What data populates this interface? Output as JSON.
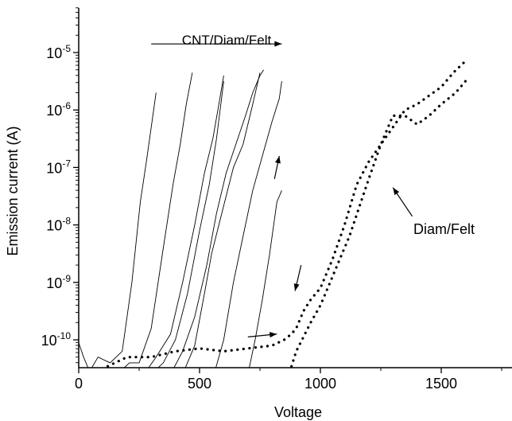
{
  "chart_data": {
    "type": "line",
    "xlabel": "Voltage",
    "ylabel": "Emission current (A)",
    "xlim": [
      0,
      1760
    ],
    "ylim_log10": [
      -10.6,
      -4.35
    ],
    "y_scale": "log",
    "x_ticks": [
      0,
      500,
      1000,
      1500
    ],
    "x_tick_labels": [
      "0",
      "500",
      "1000",
      "1500"
    ],
    "y_ticks": [
      -10,
      -9,
      -8,
      -7,
      -6,
      -5
    ],
    "y_tick_labels": [
      {
        "base": "10",
        "exp": "-10"
      },
      {
        "base": "10",
        "exp": "-9"
      },
      {
        "base": "10",
        "exp": "-8"
      },
      {
        "base": "10",
        "exp": "-7"
      },
      {
        "base": "10",
        "exp": "-6"
      },
      {
        "base": "10",
        "exp": "-5"
      }
    ],
    "annotations": [
      {
        "id": "cnt",
        "text": "CNT/Diam/Felt"
      },
      {
        "id": "diam",
        "text": "Diam/Felt"
      }
    ],
    "series": [
      {
        "group": "CNT/Diam/Felt",
        "style": "solid",
        "x": [
          0,
          20,
          45,
          80,
          130,
          180,
          220,
          255,
          280,
          300,
          320
        ],
        "y": [
          -10.05,
          -10.3,
          -10.55,
          -10.3,
          -10.4,
          -10.2,
          -9.0,
          -7.6,
          -6.9,
          -6.3,
          -5.7
        ]
      },
      {
        "group": "CNT/Diam/Felt",
        "style": "solid",
        "x": [
          160,
          210,
          250,
          300,
          350,
          390,
          420,
          445,
          470
        ],
        "y": [
          -10.6,
          -10.4,
          -10.4,
          -9.8,
          -8.4,
          -7.3,
          -6.6,
          -5.9,
          -5.35
        ]
      },
      {
        "group": "CNT/Diam/Felt",
        "style": "solid",
        "x": [
          270,
          320,
          380,
          430,
          480,
          520,
          555,
          580,
          600
        ],
        "y": [
          -10.6,
          -10.3,
          -9.9,
          -9.0,
          -8.0,
          -7.1,
          -6.5,
          -5.9,
          -5.4
        ]
      },
      {
        "group": "CNT/Diam/Felt",
        "style": "solid",
        "x": [
          300,
          350,
          400,
          450,
          500,
          540,
          570,
          600
        ],
        "y": [
          -10.6,
          -10.4,
          -10.0,
          -9.2,
          -8.1,
          -7.3,
          -6.5,
          -5.5
        ]
      },
      {
        "group": "CNT/Diam/Felt",
        "style": "solid",
        "x": [
          380,
          430,
          480,
          530,
          570,
          610,
          650,
          690,
          720,
          750,
          765
        ],
        "y": [
          -10.6,
          -10.2,
          -9.6,
          -8.7,
          -7.8,
          -7.1,
          -6.6,
          -6.1,
          -5.7,
          -5.4,
          -5.3
        ]
      },
      {
        "group": "CNT/Diam/Felt",
        "style": "solid",
        "x": [
          430,
          480,
          520,
          550,
          580,
          610,
          640,
          680,
          720,
          750
        ],
        "y": [
          -10.6,
          -10.1,
          -9.2,
          -8.5,
          -8.0,
          -7.5,
          -7.0,
          -6.6,
          -5.9,
          -5.35
        ]
      },
      {
        "group": "CNT/Diam/Felt",
        "style": "solid",
        "x": [
          560,
          600,
          640,
          680,
          720,
          760,
          800,
          830,
          840
        ],
        "y": [
          -10.6,
          -10.0,
          -9.0,
          -8.2,
          -7.4,
          -6.8,
          -6.2,
          -5.8,
          -5.5
        ]
      },
      {
        "group": "CNT/Diam/Felt",
        "style": "solid",
        "x": [
          700,
          730,
          760,
          790,
          820,
          840
        ],
        "y": [
          -10.6,
          -10.0,
          -9.3,
          -8.5,
          -7.6,
          -7.4
        ]
      },
      {
        "group": "Diam/Felt",
        "style": "dotted",
        "x": [
          0,
          100,
          200,
          300,
          400,
          500,
          600,
          700,
          800,
          850,
          880,
          900,
          930,
          960,
          1000,
          1050,
          1100,
          1150,
          1200,
          1250,
          1300,
          1350,
          1400,
          1450,
          1500,
          1550,
          1600
        ],
        "y": [
          -10.6,
          -10.5,
          -10.3,
          -10.3,
          -10.2,
          -10.15,
          -10.2,
          -10.15,
          -10.1,
          -10.0,
          -9.9,
          -9.8,
          -9.5,
          -9.3,
          -9.1,
          -8.6,
          -8.0,
          -7.3,
          -6.9,
          -6.6,
          -6.3,
          -6.0,
          -5.9,
          -5.75,
          -5.6,
          -5.35,
          -5.15
        ]
      },
      {
        "group": "Diam/Felt",
        "style": "dotted",
        "x": [
          1600,
          1560,
          1500,
          1450,
          1400,
          1350,
          1300,
          1250,
          1200,
          1160,
          1120,
          1080,
          1040,
          1000,
          960,
          930,
          900,
          870
        ],
        "y": [
          -5.5,
          -5.7,
          -5.9,
          -6.1,
          -6.25,
          -6.1,
          -6.1,
          -6.6,
          -7.2,
          -7.7,
          -8.2,
          -8.6,
          -9.0,
          -9.4,
          -9.7,
          -9.95,
          -10.2,
          -10.6
        ]
      }
    ],
    "arrows": [
      {
        "id": "cnt-direction",
        "x1": 300,
        "y1": -4.85,
        "x2": 840,
        "y2": -4.85
      },
      {
        "id": "cnt-up",
        "x1": 810,
        "y1": -7.2,
        "x2": 830,
        "y2": -6.8
      },
      {
        "id": "diam-label-pointer",
        "x1": 1380,
        "y1": -7.85,
        "x2": 1300,
        "y2": -7.35
      },
      {
        "id": "diam-down",
        "x1": 920,
        "y1": -8.7,
        "x2": 895,
        "y2": -9.15
      },
      {
        "id": "diam-right",
        "x1": 700,
        "y1": -9.95,
        "x2": 820,
        "y2": -9.9
      }
    ]
  }
}
